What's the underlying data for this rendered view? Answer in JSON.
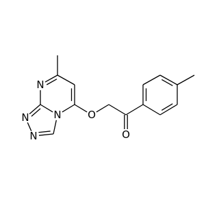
{
  "atoms": [
    {
      "label": "N"
    },
    {
      "label": "N"
    },
    {
      "label": "N"
    },
    {
      "label": "N"
    },
    {
      "label": "O"
    },
    {
      "label": "O"
    }
  ]
}
